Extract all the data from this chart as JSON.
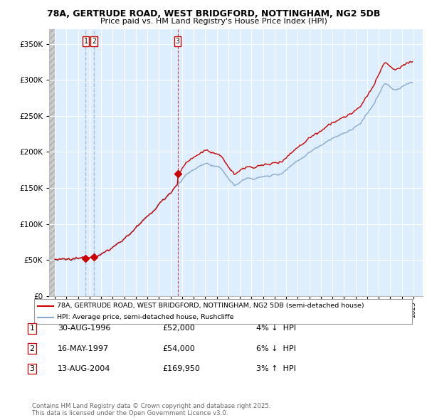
{
  "title1": "78A, GERTRUDE ROAD, WEST BRIDGFORD, NOTTINGHAM, NG2 5DB",
  "title2": "Price paid vs. HM Land Registry's House Price Index (HPI)",
  "legend_line1": "78A, GERTRUDE ROAD, WEST BRIDGFORD, NOTTINGHAM, NG2 5DB (semi-detached house)",
  "legend_line2": "HPI: Average price, semi-detached house, Rushcliffe",
  "transactions": [
    {
      "num": 1,
      "date": "30-AUG-1996",
      "price": 52000,
      "pct": "4%",
      "dir": "↓",
      "year": 1996.66
    },
    {
      "num": 2,
      "date": "16-MAY-1997",
      "price": 54000,
      "pct": "6%",
      "dir": "↓",
      "year": 1997.37
    },
    {
      "num": 3,
      "date": "13-AUG-2004",
      "price": 169950,
      "pct": "3%",
      "dir": "↑",
      "year": 2004.62
    }
  ],
  "footer": "Contains HM Land Registry data © Crown copyright and database right 2025.\nThis data is licensed under the Open Government Licence v3.0.",
  "price_color": "#cc0000",
  "hpi_color": "#88aacc",
  "vline1_color": "#aabbdd",
  "vline2_color": "#cc0000",
  "hatch_color": "#cccccc",
  "ylim": [
    0,
    370000
  ],
  "yticks": [
    0,
    50000,
    100000,
    150000,
    200000,
    250000,
    300000,
    350000
  ],
  "xlim_start": 1993.5,
  "xlim_end": 2025.8,
  "bg_color": "#ffffff",
  "plot_bg": "#ddeeff"
}
